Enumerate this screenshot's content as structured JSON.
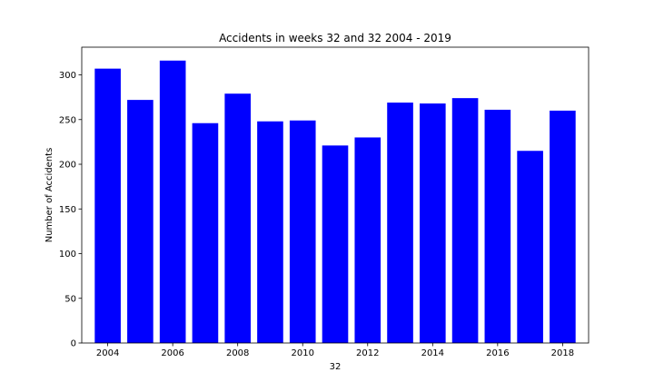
{
  "chart_data": {
    "type": "bar",
    "title": "Accidents in weeks 32 and 32 2004 - 2019",
    "xlabel": "32",
    "ylabel": "Number of Accidents",
    "x": [
      2004,
      2005,
      2006,
      2007,
      2008,
      2009,
      2010,
      2011,
      2012,
      2013,
      2014,
      2015,
      2016,
      2017,
      2018
    ],
    "values": [
      307,
      272,
      316,
      246,
      279,
      248,
      249,
      221,
      230,
      269,
      268,
      274,
      261,
      215,
      260
    ],
    "xticks": [
      2004,
      2006,
      2008,
      2010,
      2012,
      2014,
      2016,
      2018
    ],
    "xtick_labels": [
      "2004",
      "2006",
      "2008",
      "2010",
      "2012",
      "2014",
      "2016",
      "2018"
    ],
    "yticks": [
      0,
      50,
      100,
      150,
      200,
      250,
      300
    ],
    "ytick_labels": [
      "0",
      "50",
      "100",
      "150",
      "200",
      "250",
      "300"
    ],
    "xlim": [
      2003.2,
      2018.8
    ],
    "ylim": [
      0,
      331
    ],
    "bar_width": 0.8,
    "bar_color": "#0000ff",
    "grid": false,
    "legend": "none"
  }
}
